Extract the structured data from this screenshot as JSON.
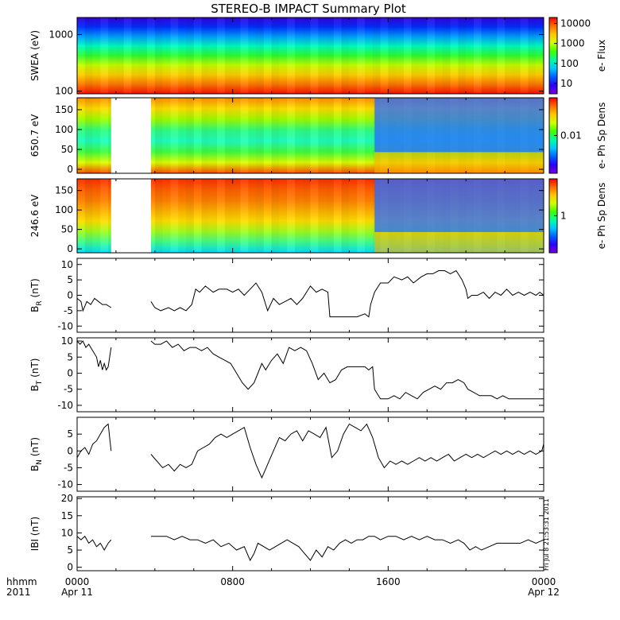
{
  "window": {
    "title": "STEREO-B IMPACT Summary Plot"
  },
  "colors": {
    "background": "#ffffff",
    "axis": "#000000",
    "trace": "#000000",
    "rainbow": [
      "#7a00d6",
      "#2a00ff",
      "#0060ff",
      "#00c8ff",
      "#00ffa0",
      "#40ff00",
      "#d0ff00",
      "#ffc800",
      "#ff6a00",
      "#ff0000"
    ]
  },
  "x_axis": {
    "row_labels": [
      "hhmm",
      "2011"
    ],
    "ticks": [
      {
        "hour": 0,
        "label": "0000",
        "date": "Apr 11"
      },
      {
        "hour": 8,
        "label": "0800",
        "date": ""
      },
      {
        "hour": 16,
        "label": "1600",
        "date": ""
      },
      {
        "hour": 24,
        "label": "0000",
        "date": "Apr 12"
      }
    ],
    "range_hours": [
      0,
      24
    ]
  },
  "side_stamp": "Fri Jul  8 21:53:31 2011",
  "chart_data": [
    {
      "type": "heatmap",
      "id": "swea",
      "ylabel": "SWEA (eV)",
      "yscale": "log",
      "ylim": [
        90,
        2000
      ],
      "yticks": [
        {
          "v": 100,
          "label": "100"
        },
        {
          "v": 1000,
          "label": "1000"
        }
      ],
      "colorbar": {
        "label": "e- Flux",
        "scale": "log",
        "range": [
          3,
          20000
        ],
        "ticks": [
          {
            "v": 10,
            "label": "10"
          },
          {
            "v": 100,
            "label": "100"
          },
          {
            "v": 1000,
            "label": "1000"
          },
          {
            "v": 10000,
            "label": "10000"
          }
        ]
      },
      "data_gaps_hours": []
    },
    {
      "type": "heatmap",
      "id": "pad650",
      "ylabel": "650.7 eV",
      "yscale": "linear",
      "ylim": [
        -10,
        180
      ],
      "yticks": [
        {
          "v": 0,
          "label": "0"
        },
        {
          "v": 50,
          "label": "50"
        },
        {
          "v": 100,
          "label": "100"
        },
        {
          "v": 150,
          "label": "150"
        }
      ],
      "colorbar": {
        "label": "e- Ph Sp Dens",
        "scale": "log",
        "range": [
          0.001,
          0.1
        ],
        "ticks": [
          {
            "v": 0.01,
            "label": "0.01"
          }
        ]
      },
      "data_gaps_hours": [
        [
          1.75,
          3.8
        ]
      ]
    },
    {
      "type": "heatmap",
      "id": "pad246",
      "ylabel": "246.6 eV",
      "yscale": "linear",
      "ylim": [
        -10,
        180
      ],
      "yticks": [
        {
          "v": 0,
          "label": "0"
        },
        {
          "v": 50,
          "label": "50"
        },
        {
          "v": 100,
          "label": "100"
        },
        {
          "v": 150,
          "label": "150"
        }
      ],
      "colorbar": {
        "label": "e- Ph Sp Dens",
        "scale": "log",
        "range": [
          0.1,
          10
        ],
        "ticks": [
          {
            "v": 1,
            "label": "1"
          }
        ]
      },
      "data_gaps_hours": [
        [
          1.75,
          3.8
        ]
      ]
    },
    {
      "type": "line",
      "id": "br",
      "ylabel": "B_R (nT)",
      "ylabel_main": "B",
      "ylabel_sub": "R",
      "ylabel_unit": " (nT)",
      "ylim": [
        -12,
        12
      ],
      "yticks": [
        {
          "v": -10,
          "label": "-10"
        },
        {
          "v": -5,
          "label": "-5"
        },
        {
          "v": 0,
          "label": "0"
        },
        {
          "v": 5,
          "label": "5"
        },
        {
          "v": 10,
          "label": "10"
        }
      ],
      "segments": [
        {
          "x": [
            0.0,
            0.2,
            0.3,
            0.5,
            0.7,
            0.9,
            1.1,
            1.3,
            1.5,
            1.75
          ],
          "y": [
            -1,
            -2,
            -5,
            -2,
            -3,
            -1,
            -2,
            -3,
            -3,
            -4
          ]
        },
        {
          "x": [
            3.8,
            4.0,
            4.3,
            4.7,
            5.0,
            5.3,
            5.6,
            5.9,
            6.1,
            6.3,
            6.6,
            7.0,
            7.3,
            7.7,
            8.0,
            8.3,
            8.6,
            8.9,
            9.2,
            9.5,
            9.8,
            10.1,
            10.4,
            10.7,
            11.0,
            11.3,
            11.6,
            11.8,
            12.0,
            12.3,
            12.6,
            12.9,
            13.0,
            13.3,
            13.7,
            14.0,
            14.4,
            14.8,
            15.0,
            15.1,
            15.3,
            15.6,
            16.0,
            16.3,
            16.7,
            17.0,
            17.3,
            17.7,
            18.0,
            18.3,
            18.6,
            18.9,
            19.2,
            19.5,
            19.8,
            20.0,
            20.1,
            20.3,
            20.6,
            20.9,
            21.2,
            21.5,
            21.8,
            22.1,
            22.4,
            22.7,
            23.0,
            23.3,
            23.6,
            23.8,
            24.0
          ],
          "y": [
            -2,
            -4,
            -5,
            -4,
            -5,
            -4,
            -5,
            -3,
            2,
            1,
            3,
            1,
            2,
            2,
            1,
            2,
            0,
            2,
            4,
            1,
            -5,
            -1,
            -3,
            -2,
            -1,
            -3,
            -1,
            1,
            3,
            1,
            2,
            1,
            -7,
            -7,
            -7,
            -7,
            -7,
            -6,
            -7,
            -3,
            1,
            4,
            4,
            6,
            5,
            6,
            4,
            6,
            7,
            7,
            8,
            8,
            7,
            8,
            5,
            2,
            -1,
            0,
            0,
            1,
            -1,
            1,
            0,
            2,
            0,
            1,
            0,
            1,
            0,
            1,
            0
          ]
        }
      ]
    },
    {
      "type": "line",
      "id": "bt",
      "ylabel": "B_T (nT)",
      "ylabel_main": "B",
      "ylabel_sub": "T",
      "ylabel_unit": " (nT)",
      "ylim": [
        -12,
        11
      ],
      "yticks": [
        {
          "v": -10,
          "label": "-10"
        },
        {
          "v": -5,
          "label": "-5"
        },
        {
          "v": 0,
          "label": "0"
        },
        {
          "v": 5,
          "label": "5"
        },
        {
          "v": 10,
          "label": "10"
        }
      ],
      "segments": [
        {
          "x": [
            0.0,
            0.15,
            0.3,
            0.45,
            0.6,
            0.8,
            1.0,
            1.1,
            1.2,
            1.3,
            1.4,
            1.5,
            1.6,
            1.75
          ],
          "y": [
            10,
            9,
            10,
            8,
            9,
            7,
            5,
            2,
            4,
            1,
            3,
            1,
            2,
            8
          ]
        },
        {
          "x": [
            3.8,
            4.0,
            4.3,
            4.6,
            4.9,
            5.2,
            5.5,
            5.8,
            6.1,
            6.4,
            6.7,
            7.0,
            7.3,
            7.6,
            7.9,
            8.2,
            8.5,
            8.8,
            9.1,
            9.3,
            9.5,
            9.7,
            10.0,
            10.3,
            10.6,
            10.9,
            11.2,
            11.5,
            11.8,
            12.1,
            12.4,
            12.7,
            13.0,
            13.3,
            13.6,
            13.9,
            14.2,
            14.5,
            14.8,
            15.0,
            15.2,
            15.3,
            15.6,
            16.0,
            16.3,
            16.6,
            16.9,
            17.2,
            17.5,
            17.8,
            18.1,
            18.4,
            18.7,
            19.0,
            19.3,
            19.6,
            19.9,
            20.1,
            20.4,
            20.7,
            21.0,
            21.3,
            21.6,
            21.9,
            22.2,
            22.5,
            22.8,
            23.1,
            23.4,
            23.7,
            24.0
          ],
          "y": [
            10,
            9,
            9,
            10,
            8,
            9,
            7,
            8,
            8,
            7,
            8,
            6,
            5,
            4,
            3,
            0,
            -3,
            -5,
            -3,
            0,
            3,
            1,
            4,
            6,
            3,
            8,
            7,
            8,
            7,
            3,
            -2,
            0,
            -3,
            -2,
            1,
            2,
            2,
            2,
            2,
            1,
            2,
            -5,
            -8,
            -8,
            -7,
            -8,
            -6,
            -7,
            -8,
            -6,
            -5,
            -4,
            -5,
            -3,
            -3,
            -2,
            -3,
            -5,
            -6,
            -7,
            -7,
            -7,
            -8,
            -7,
            -8,
            -8,
            -8,
            -8,
            -8,
            -8,
            -8
          ]
        }
      ]
    },
    {
      "type": "line",
      "id": "bn",
      "ylabel": "B_N (nT)",
      "ylabel_main": "B",
      "ylabel_sub": "N",
      "ylabel_unit": " (nT)",
      "ylim": [
        -12,
        10
      ],
      "yticks": [
        {
          "v": -10,
          "label": "-10"
        },
        {
          "v": -5,
          "label": "-5"
        },
        {
          "v": 0,
          "label": "0"
        },
        {
          "v": 5,
          "label": "5"
        }
      ],
      "segments": [
        {
          "x": [
            0.0,
            0.2,
            0.4,
            0.6,
            0.8,
            1.0,
            1.2,
            1.4,
            1.6,
            1.75
          ],
          "y": [
            -2,
            0,
            1,
            -1,
            2,
            3,
            5,
            7,
            8,
            0
          ]
        },
        {
          "x": [
            3.8,
            4.1,
            4.4,
            4.7,
            5.0,
            5.3,
            5.6,
            5.9,
            6.2,
            6.5,
            6.8,
            7.1,
            7.4,
            7.7,
            8.0,
            8.3,
            8.6,
            8.9,
            9.2,
            9.5,
            9.8,
            10.1,
            10.4,
            10.7,
            11.0,
            11.3,
            11.6,
            11.9,
            12.2,
            12.5,
            12.8,
            13.1,
            13.4,
            13.7,
            14.0,
            14.3,
            14.6,
            14.9,
            15.2,
            15.5,
            15.8,
            16.1,
            16.4,
            16.7,
            17.0,
            17.3,
            17.6,
            17.9,
            18.2,
            18.5,
            18.8,
            19.1,
            19.4,
            19.7,
            20.0,
            20.3,
            20.6,
            20.9,
            21.2,
            21.5,
            21.8,
            22.1,
            22.4,
            22.7,
            23.0,
            23.3,
            23.6,
            23.9,
            24.0
          ],
          "y": [
            -1,
            -3,
            -5,
            -4,
            -6,
            -4,
            -5,
            -4,
            0,
            1,
            2,
            4,
            5,
            4,
            5,
            6,
            7,
            1,
            -4,
            -8,
            -4,
            0,
            4,
            3,
            5,
            6,
            3,
            6,
            5,
            4,
            7,
            -2,
            0,
            5,
            8,
            7,
            6,
            8,
            4,
            -2,
            -5,
            -3,
            -4,
            -3,
            -4,
            -3,
            -2,
            -3,
            -2,
            -3,
            -2,
            -1,
            -3,
            -2,
            -1,
            -2,
            -1,
            -2,
            -1,
            0,
            -1,
            0,
            -1,
            0,
            -1,
            0,
            -1,
            0,
            2
          ]
        }
      ]
    },
    {
      "type": "line",
      "id": "bmag",
      "ylabel": "|B| (nT)",
      "ylabel_main": "IBI",
      "ylabel_sub": "",
      "ylabel_unit": " (nT)",
      "ylim": [
        -1,
        20.5
      ],
      "yticks": [
        {
          "v": 0,
          "label": "0"
        },
        {
          "v": 5,
          "label": "5"
        },
        {
          "v": 10,
          "label": "10"
        },
        {
          "v": 15,
          "label": "15"
        },
        {
          "v": 20,
          "label": "20"
        }
      ],
      "segments": [
        {
          "x": [
            0.0,
            0.2,
            0.4,
            0.6,
            0.8,
            1.0,
            1.2,
            1.4,
            1.6,
            1.75
          ],
          "y": [
            9,
            8,
            9,
            7,
            8,
            6,
            7,
            5,
            7,
            8
          ]
        },
        {
          "x": [
            3.8,
            4.2,
            4.6,
            5.0,
            5.4,
            5.8,
            6.2,
            6.6,
            7.0,
            7.4,
            7.8,
            8.2,
            8.6,
            8.9,
            9.1,
            9.3,
            9.6,
            9.9,
            10.2,
            10.5,
            10.8,
            11.1,
            11.4,
            11.7,
            12.0,
            12.3,
            12.6,
            12.9,
            13.2,
            13.5,
            13.8,
            14.1,
            14.4,
            14.7,
            15.0,
            15.3,
            15.6,
            16.0,
            16.4,
            16.8,
            17.2,
            17.6,
            18.0,
            18.4,
            18.8,
            19.2,
            19.6,
            19.9,
            20.2,
            20.5,
            20.8,
            21.2,
            21.6,
            22.0,
            22.4,
            22.8,
            23.2,
            23.6,
            24.0
          ],
          "y": [
            9,
            9,
            9,
            8,
            9,
            8,
            8,
            7,
            8,
            6,
            7,
            5,
            6,
            2,
            4,
            7,
            6,
            5,
            6,
            7,
            8,
            7,
            6,
            4,
            2,
            5,
            3,
            6,
            5,
            7,
            8,
            7,
            8,
            8,
            9,
            9,
            8,
            9,
            9,
            8,
            9,
            8,
            9,
            8,
            8,
            7,
            8,
            7,
            5,
            6,
            5,
            6,
            7,
            7,
            7,
            7,
            8,
            7,
            8
          ]
        }
      ]
    }
  ]
}
